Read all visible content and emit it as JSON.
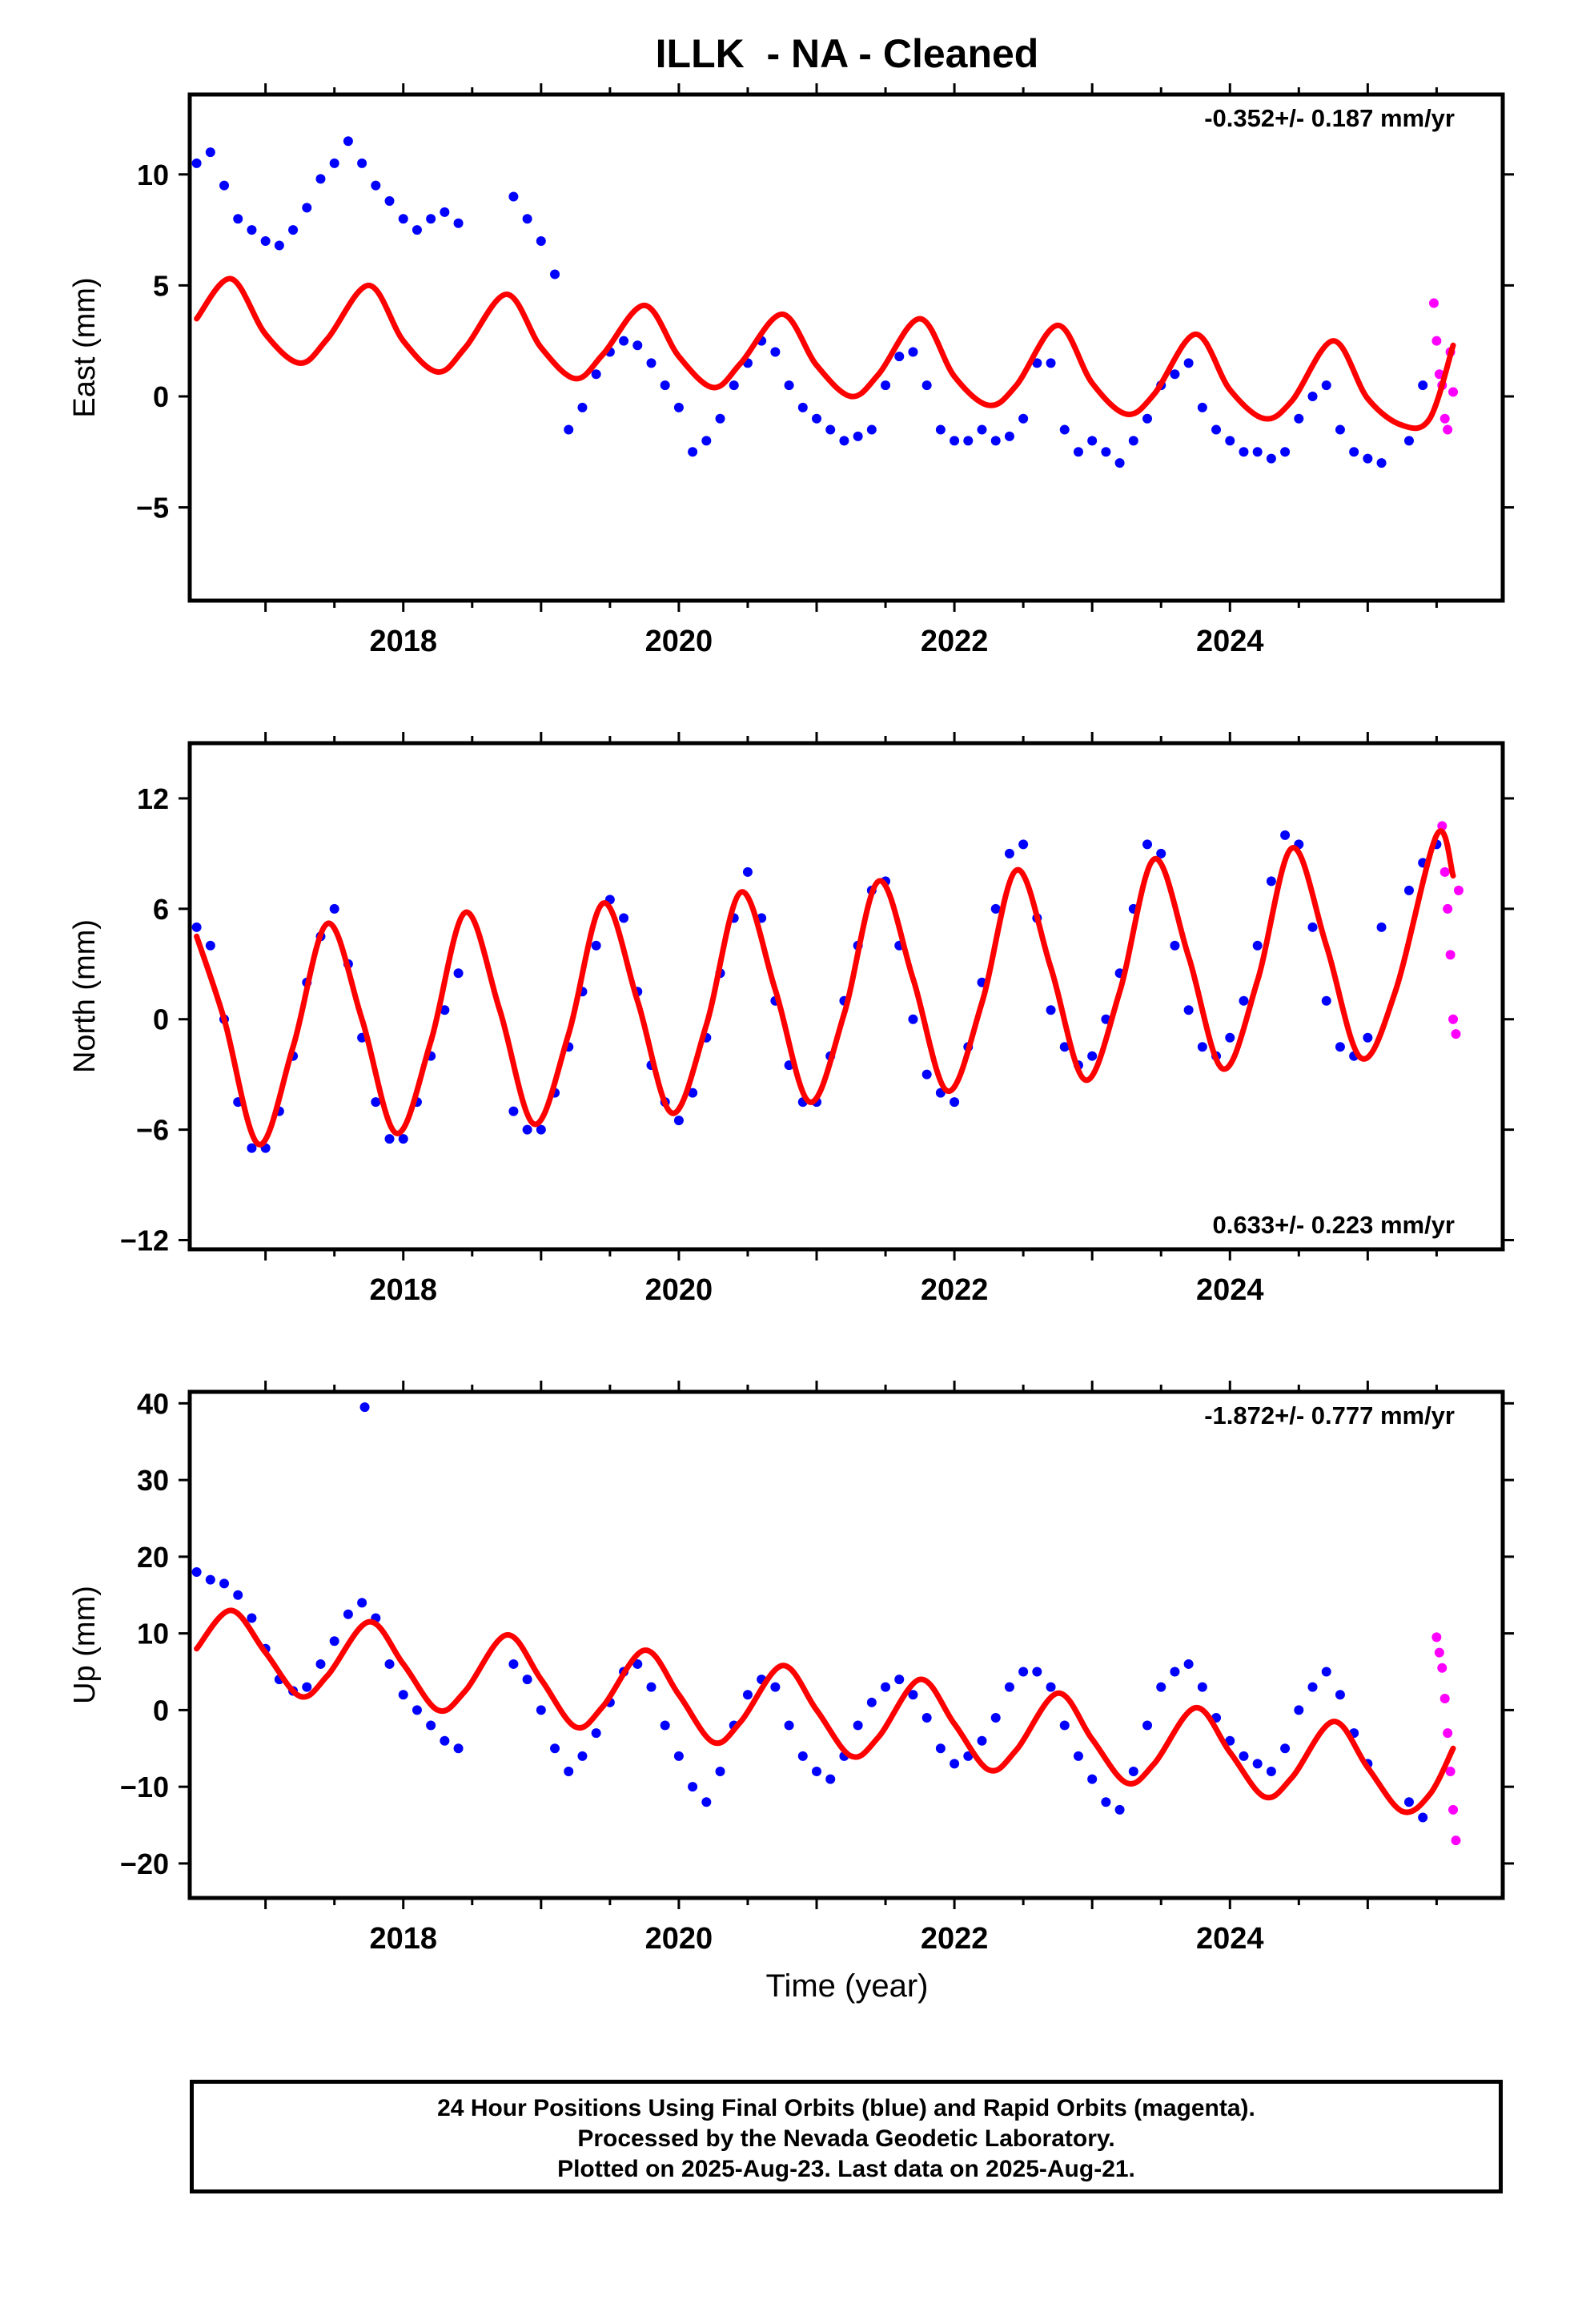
{
  "title": "ILLK  - NA - Cleaned",
  "xlabel": "Time (year)",
  "footer": {
    "line1": "24 Hour Positions Using Final Orbits (blue) and Rapid Orbits (magenta).",
    "line2": "Processed by the Nevada Geodetic Laboratory.",
    "line3": "Plotted on 2025-Aug-23. Last data on 2025-Aug-21."
  },
  "colors": {
    "final_orbits": "#0000ff",
    "rapid_orbits": "#ff00ff",
    "model": "#ff0000"
  },
  "chart_data": [
    {
      "type": "scatter",
      "ylabel": "East (mm)",
      "rate": "-0.352+/- 0.187 mm/yr",
      "rate_position": "top-right",
      "xlim": [
        2016.45,
        2025.98
      ],
      "ylim": [
        -9.2,
        13.6
      ],
      "yticks": [
        -5,
        0,
        5,
        10
      ],
      "ytick_labels": [
        "−5",
        "0",
        "5",
        "10"
      ],
      "xticks": [
        2018,
        2020,
        2022,
        2024
      ],
      "xtick_labels": [
        "2018",
        "2020",
        "2022",
        "2024"
      ],
      "series": [
        {
          "name": "Final Orbits",
          "color": "blue",
          "x": [
            2016.5,
            2016.6,
            2016.7,
            2016.8,
            2016.9,
            2017.0,
            2017.1,
            2017.2,
            2017.3,
            2017.4,
            2017.5,
            2017.6,
            2017.7,
            2017.8,
            2017.9,
            2018.0,
            2018.1,
            2018.2,
            2018.3,
            2018.4,
            2018.8,
            2018.9,
            2019.0,
            2019.1,
            2019.2,
            2019.3,
            2019.4,
            2019.5,
            2019.6,
            2019.7,
            2019.8,
            2019.9,
            2020.0,
            2020.1,
            2020.2,
            2020.3,
            2020.4,
            2020.5,
            2020.6,
            2020.7,
            2020.8,
            2020.9,
            2021.0,
            2021.1,
            2021.2,
            2021.3,
            2021.4,
            2021.5,
            2021.6,
            2021.7,
            2021.8,
            2021.9,
            2022.0,
            2022.1,
            2022.2,
            2022.3,
            2022.4,
            2022.5,
            2022.6,
            2022.7,
            2022.8,
            2022.9,
            2023.0,
            2023.1,
            2023.2,
            2023.3,
            2023.4,
            2023.5,
            2023.6,
            2023.7,
            2023.8,
            2023.9,
            2024.0,
            2024.1,
            2024.2,
            2024.3,
            2024.4,
            2024.5,
            2024.6,
            2024.7,
            2024.8,
            2024.9,
            2025.0,
            2025.1,
            2025.3,
            2025.4
          ],
          "y": [
            10.5,
            11.0,
            9.5,
            8.0,
            7.5,
            7.0,
            6.8,
            7.5,
            8.5,
            9.8,
            10.5,
            11.5,
            10.5,
            9.5,
            8.8,
            8.0,
            7.5,
            8.0,
            8.3,
            7.8,
            9.0,
            8.0,
            7.0,
            5.5,
            -1.5,
            -0.5,
            1.0,
            2.0,
            2.5,
            2.3,
            1.5,
            0.5,
            -0.5,
            -2.5,
            -2.0,
            -1.0,
            0.5,
            1.5,
            2.5,
            2.0,
            0.5,
            -0.5,
            -1.0,
            -1.5,
            -2.0,
            -1.8,
            -1.5,
            0.5,
            1.8,
            2.0,
            0.5,
            -1.5,
            -2.0,
            -2.0,
            -1.5,
            -2.0,
            -1.8,
            -1.0,
            1.5,
            1.5,
            -1.5,
            -2.5,
            -2.0,
            -2.5,
            -3.0,
            -2.0,
            -1.0,
            0.5,
            1.0,
            1.5,
            -0.5,
            -1.5,
            -2.0,
            -2.5,
            -2.5,
            -2.8,
            -2.5,
            -1.0,
            0.0,
            0.5,
            -1.5,
            -2.5,
            -2.8,
            -3.0,
            -2.0,
            0.5
          ]
        },
        {
          "name": "Rapid Orbits",
          "color": "magenta",
          "x": [
            2025.48,
            2025.5,
            2025.52,
            2025.54,
            2025.56,
            2025.58,
            2025.6,
            2025.62
          ],
          "y": [
            4.2,
            2.5,
            1.0,
            0.5,
            -1.0,
            -1.5,
            2.0,
            0.2
          ]
        },
        {
          "name": "Model",
          "color": "red",
          "x": [
            2016.5,
            2016.75,
            2017.0,
            2017.25,
            2017.45,
            2017.75,
            2018.0,
            2018.25,
            2018.45,
            2018.75,
            2019.0,
            2019.25,
            2019.45,
            2019.75,
            2020.0,
            2020.25,
            2020.45,
            2020.75,
            2021.0,
            2021.25,
            2021.45,
            2021.75,
            2022.0,
            2022.25,
            2022.45,
            2022.75,
            2023.0,
            2023.25,
            2023.45,
            2023.75,
            2024.0,
            2024.25,
            2024.45,
            2024.75,
            2025.0,
            2025.25,
            2025.45,
            2025.62
          ],
          "y": [
            3.5,
            5.3,
            2.8,
            1.5,
            2.6,
            5.0,
            2.5,
            1.1,
            2.2,
            4.6,
            2.2,
            0.8,
            1.9,
            4.1,
            1.8,
            0.4,
            1.5,
            3.7,
            1.4,
            0.0,
            1.0,
            3.5,
            0.9,
            -0.4,
            0.5,
            3.2,
            0.6,
            -0.8,
            0.1,
            2.8,
            0.3,
            -1.0,
            -0.2,
            2.5,
            -0.1,
            -1.3,
            -1.0,
            2.3
          ]
        }
      ]
    },
    {
      "type": "scatter",
      "ylabel": "North (mm)",
      "rate": "0.633+/- 0.223 mm/yr",
      "rate_position": "bottom-right",
      "xlim": [
        2016.45,
        2025.98
      ],
      "ylim": [
        -12.5,
        15.0
      ],
      "yticks": [
        -12,
        -6,
        0,
        6,
        12
      ],
      "ytick_labels": [
        "−12",
        "−6",
        "0",
        "6",
        "12"
      ],
      "xticks": [
        2018,
        2020,
        2022,
        2024
      ],
      "xtick_labels": [
        "2018",
        "2020",
        "2022",
        "2024"
      ],
      "series": [
        {
          "name": "Final Orbits",
          "color": "blue",
          "x": [
            2016.5,
            2016.6,
            2016.7,
            2016.8,
            2016.9,
            2017.0,
            2017.1,
            2017.2,
            2017.3,
            2017.4,
            2017.5,
            2017.6,
            2017.7,
            2017.8,
            2017.9,
            2018.0,
            2018.1,
            2018.2,
            2018.3,
            2018.4,
            2018.8,
            2018.9,
            2019.0,
            2019.1,
            2019.2,
            2019.3,
            2019.4,
            2019.5,
            2019.6,
            2019.7,
            2019.8,
            2019.9,
            2020.0,
            2020.1,
            2020.2,
            2020.3,
            2020.4,
            2020.5,
            2020.6,
            2020.7,
            2020.8,
            2020.9,
            2021.0,
            2021.1,
            2021.2,
            2021.3,
            2021.4,
            2021.5,
            2021.6,
            2021.7,
            2021.8,
            2021.9,
            2022.0,
            2022.1,
            2022.2,
            2022.3,
            2022.4,
            2022.5,
            2022.6,
            2022.7,
            2022.8,
            2022.9,
            2023.0,
            2023.1,
            2023.2,
            2023.3,
            2023.4,
            2023.5,
            2023.6,
            2023.7,
            2023.8,
            2023.9,
            2024.0,
            2024.1,
            2024.2,
            2024.3,
            2024.4,
            2024.5,
            2024.6,
            2024.7,
            2024.8,
            2024.9,
            2025.0,
            2025.1,
            2025.3,
            2025.4,
            2025.5
          ],
          "y": [
            5.0,
            4.0,
            0.0,
            -4.5,
            -7.0,
            -7.0,
            -5.0,
            -2.0,
            2.0,
            4.5,
            6.0,
            3.0,
            -1.0,
            -4.5,
            -6.5,
            -6.5,
            -4.5,
            -2.0,
            0.5,
            2.5,
            -5.0,
            -6.0,
            -6.0,
            -4.0,
            -1.5,
            1.5,
            4.0,
            6.5,
            5.5,
            1.5,
            -2.5,
            -4.5,
            -5.5,
            -4.0,
            -1.0,
            2.5,
            5.5,
            8.0,
            5.5,
            1.0,
            -2.5,
            -4.5,
            -4.5,
            -2.0,
            1.0,
            4.0,
            7.0,
            7.5,
            4.0,
            0.0,
            -3.0,
            -4.0,
            -4.5,
            -1.5,
            2.0,
            6.0,
            9.0,
            9.5,
            5.5,
            0.5,
            -1.5,
            -2.5,
            -2.0,
            0.0,
            2.5,
            6.0,
            9.5,
            9.0,
            4.0,
            0.5,
            -1.5,
            -2.0,
            -1.0,
            1.0,
            4.0,
            7.5,
            10.0,
            9.5,
            5.0,
            1.0,
            -1.5,
            -2.0,
            -1.0,
            5.0,
            7.0,
            8.5,
            9.5
          ]
        },
        {
          "name": "Rapid Orbits",
          "color": "magenta",
          "x": [
            2025.54,
            2025.56,
            2025.58,
            2025.6,
            2025.62,
            2025.64,
            2025.66
          ],
          "y": [
            10.5,
            8.0,
            6.0,
            3.5,
            0.0,
            -0.8,
            7.0
          ]
        },
        {
          "name": "Model",
          "color": "red",
          "x": [
            2016.5,
            2016.7,
            2016.95,
            2017.2,
            2017.45,
            2017.7,
            2017.95,
            2018.2,
            2018.45,
            2018.7,
            2018.95,
            2019.2,
            2019.45,
            2019.7,
            2019.95,
            2020.2,
            2020.45,
            2020.7,
            2020.95,
            2021.2,
            2021.45,
            2021.7,
            2021.95,
            2022.2,
            2022.45,
            2022.7,
            2022.95,
            2023.2,
            2023.45,
            2023.7,
            2023.95,
            2024.2,
            2024.45,
            2024.7,
            2024.95,
            2025.2,
            2025.5,
            2025.62
          ],
          "y": [
            4.5,
            0.0,
            -6.8,
            -1.5,
            5.2,
            0.0,
            -6.2,
            -1.2,
            5.8,
            0.5,
            -5.7,
            -0.8,
            6.3,
            1.0,
            -5.1,
            -0.3,
            6.9,
            1.6,
            -4.5,
            0.3,
            7.5,
            2.2,
            -3.9,
            0.9,
            8.1,
            2.8,
            -3.3,
            1.5,
            8.7,
            3.4,
            -2.7,
            2.1,
            9.3,
            4.0,
            -2.1,
            1.5,
            10.0,
            7.8
          ]
        }
      ]
    },
    {
      "type": "scatter",
      "ylabel": "Up (mm)",
      "rate": "-1.872+/- 0.777 mm/yr",
      "rate_position": "top-right",
      "xlim": [
        2016.45,
        2025.98
      ],
      "ylim": [
        -24.5,
        41.5
      ],
      "yticks": [
        -20,
        -10,
        0,
        10,
        20,
        30,
        40
      ],
      "ytick_labels": [
        "−20",
        "−10",
        "0",
        "10",
        "20",
        "30",
        "40"
      ],
      "xticks": [
        2018,
        2020,
        2022,
        2024
      ],
      "xtick_labels": [
        "2018",
        "2020",
        "2022",
        "2024"
      ],
      "series": [
        {
          "name": "Final Orbits",
          "color": "blue",
          "x": [
            2016.5,
            2016.6,
            2016.7,
            2016.8,
            2016.9,
            2017.0,
            2017.1,
            2017.2,
            2017.3,
            2017.4,
            2017.5,
            2017.6,
            2017.7,
            2017.8,
            2017.9,
            2018.0,
            2018.1,
            2018.2,
            2018.3,
            2018.4,
            2018.8,
            2018.9,
            2019.0,
            2019.1,
            2019.2,
            2019.3,
            2019.4,
            2019.5,
            2019.6,
            2019.7,
            2019.8,
            2019.9,
            2020.0,
            2020.1,
            2020.2,
            2020.3,
            2020.4,
            2020.5,
            2020.6,
            2020.7,
            2020.8,
            2020.9,
            2021.0,
            2021.1,
            2021.2,
            2021.3,
            2021.4,
            2021.5,
            2021.6,
            2021.7,
            2021.8,
            2021.9,
            2022.0,
            2022.1,
            2022.2,
            2022.3,
            2022.4,
            2022.5,
            2022.6,
            2022.7,
            2022.8,
            2022.9,
            2023.0,
            2023.1,
            2023.2,
            2023.3,
            2023.4,
            2023.5,
            2023.6,
            2023.7,
            2023.8,
            2023.9,
            2024.0,
            2024.1,
            2024.2,
            2024.3,
            2024.4,
            2024.5,
            2024.6,
            2024.7,
            2024.8,
            2024.9,
            2025.0,
            2025.3,
            2025.4,
            2017.72
          ],
          "y": [
            18.0,
            17.0,
            16.5,
            15.0,
            12.0,
            8.0,
            4.0,
            2.5,
            3.0,
            6.0,
            9.0,
            12.5,
            14.0,
            12.0,
            6.0,
            2.0,
            0.0,
            -2.0,
            -4.0,
            -5.0,
            6.0,
            4.0,
            0.0,
            -5.0,
            -8.0,
            -6.0,
            -3.0,
            1.0,
            5.0,
            6.0,
            3.0,
            -2.0,
            -6.0,
            -10.0,
            -12.0,
            -8.0,
            -2.0,
            2.0,
            4.0,
            3.0,
            -2.0,
            -6.0,
            -8.0,
            -9.0,
            -6.0,
            -2.0,
            1.0,
            3.0,
            4.0,
            2.0,
            -1.0,
            -5.0,
            -7.0,
            -6.0,
            -4.0,
            -1.0,
            3.0,
            5.0,
            5.0,
            3.0,
            -2.0,
            -6.0,
            -9.0,
            -12.0,
            -13.0,
            -8.0,
            -2.0,
            3.0,
            5.0,
            6.0,
            3.0,
            -1.0,
            -4.0,
            -6.0,
            -7.0,
            -8.0,
            -5.0,
            0.0,
            3.0,
            5.0,
            2.0,
            -3.0,
            -7.0,
            -12.0,
            -14.0,
            39.5
          ]
        },
        {
          "name": "Rapid Orbits",
          "color": "magenta",
          "x": [
            2025.5,
            2025.52,
            2025.54,
            2025.56,
            2025.58,
            2025.6,
            2025.62,
            2025.64
          ],
          "y": [
            9.5,
            7.5,
            5.5,
            1.5,
            -3.0,
            -8.0,
            -13.0,
            -17.0
          ]
        },
        {
          "name": "Model",
          "color": "red",
          "x": [
            2016.5,
            2016.75,
            2017.0,
            2017.25,
            2017.45,
            2017.75,
            2018.0,
            2018.25,
            2018.45,
            2018.75,
            2019.0,
            2019.25,
            2019.45,
            2019.75,
            2020.0,
            2020.25,
            2020.45,
            2020.75,
            2021.0,
            2021.25,
            2021.45,
            2021.75,
            2022.0,
            2022.25,
            2022.45,
            2022.75,
            2023.0,
            2023.25,
            2023.45,
            2023.75,
            2024.0,
            2024.25,
            2024.45,
            2024.75,
            2025.0,
            2025.25,
            2025.45,
            2025.62
          ],
          "y": [
            8.0,
            13.0,
            7.5,
            1.8,
            4.5,
            11.5,
            6.0,
            0.0,
            2.5,
            9.8,
            4.0,
            -2.2,
            0.5,
            7.8,
            2.0,
            -4.2,
            -1.5,
            5.8,
            0.0,
            -6.0,
            -3.5,
            4.0,
            -1.8,
            -7.8,
            -5.2,
            2.2,
            -3.8,
            -9.5,
            -7.0,
            0.3,
            -5.5,
            -11.3,
            -8.8,
            -1.5,
            -7.5,
            -13.2,
            -11.0,
            -5.0
          ]
        }
      ]
    }
  ]
}
